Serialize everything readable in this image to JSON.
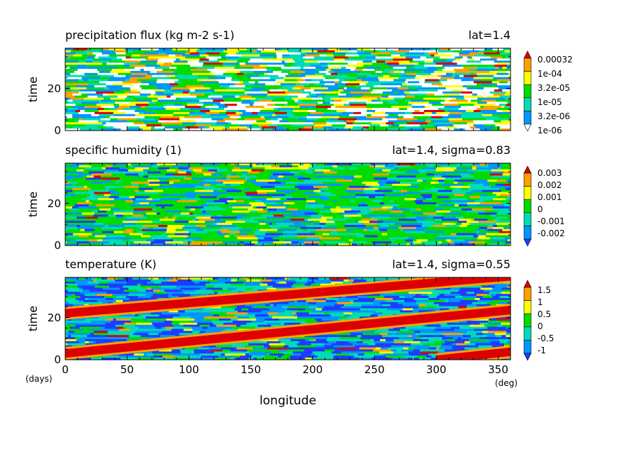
{
  "chart_data": {
    "type": "heatmap",
    "xlabel": "longitude",
    "x_unit": "(deg)",
    "y_unit": "(days)",
    "xlim": [
      0,
      360
    ],
    "x_ticks": [
      "0",
      "50",
      "100",
      "150",
      "200",
      "250",
      "300",
      "350"
    ],
    "x_tick_values": [
      0,
      50,
      100,
      150,
      200,
      250,
      300,
      350
    ],
    "panels": [
      {
        "id": "precip",
        "title": "precipitation flux (kg m-2 s-1)",
        "location": "lat=1.4",
        "ylabel": "time",
        "ylim": [
          0,
          39
        ],
        "y_ticks": [
          "0",
          "20"
        ],
        "y_tick_values": [
          0,
          20
        ],
        "colorbar_labels": [
          "0.00032",
          "1e-04",
          "3.2e-05",
          "1e-05",
          "3.2e-06",
          "1e-06"
        ],
        "colors": [
          "#ffffff",
          "#0096ff",
          "#00dcb4",
          "#00dc00",
          "#ffff00",
          "#ffa000",
          "#dc0000"
        ]
      },
      {
        "id": "humidity",
        "title": "specific humidity (1)",
        "location": "lat=1.4, sigma=0.83",
        "ylabel": "time",
        "ylim": [
          0,
          39
        ],
        "y_ticks": [
          "0",
          "20"
        ],
        "y_tick_values": [
          0,
          20
        ],
        "colorbar_labels": [
          "0.003",
          "0.002",
          "0.001",
          "0",
          "-0.001",
          "-0.002"
        ],
        "colors": [
          "#1e3cff",
          "#0096ff",
          "#00dcb4",
          "#00dc00",
          "#ffff00",
          "#ffa000",
          "#dc0000"
        ]
      },
      {
        "id": "temperature",
        "title": "temperature (K)",
        "location": "lat=1.4, sigma=0.55",
        "ylabel": "time",
        "ylim": [
          0,
          39
        ],
        "y_ticks": [
          "0",
          "20"
        ],
        "y_tick_values": [
          0,
          20
        ],
        "colorbar_labels": [
          "1.5",
          "1",
          "0.5",
          "0",
          "-0.5",
          "-1"
        ],
        "colors": [
          "#1e3cff",
          "#0096ff",
          "#00dcb4",
          "#00dc00",
          "#ffff00",
          "#ffa000",
          "#dc0000"
        ]
      }
    ]
  }
}
